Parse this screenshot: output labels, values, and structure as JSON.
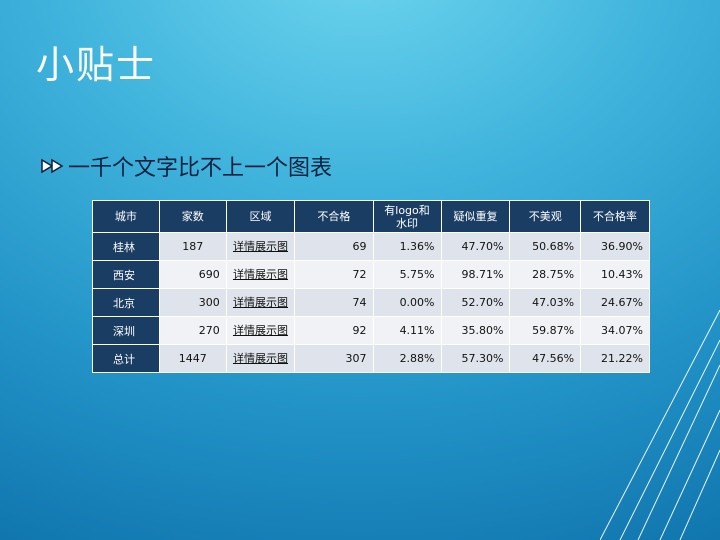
{
  "slide": {
    "title": "小贴士",
    "bullet": "一千个文字比不上一个图表"
  },
  "table": {
    "headers": [
      "城市",
      "家数",
      "区域",
      "不合格",
      "有logo和水印",
      "疑似重复",
      "不美观",
      "不合格率"
    ],
    "rows": [
      {
        "city": "桂林",
        "count": "187",
        "region": "详情展示图",
        "fail": "69",
        "logo": "1.36%",
        "dup": "47.70%",
        "ugly": "50.68%",
        "rate": "36.90%"
      },
      {
        "city": "西安",
        "count": "690",
        "region": "详情展示图",
        "fail": "72",
        "logo": "5.75%",
        "dup": "98.71%",
        "ugly": "28.75%",
        "rate": "10.43%"
      },
      {
        "city": "北京",
        "count": "300",
        "region": "详情展示图",
        "fail": "74",
        "logo": "0.00%",
        "dup": "52.70%",
        "ugly": "47.03%",
        "rate": "24.67%"
      },
      {
        "city": "深圳",
        "count": "270",
        "region": "详情展示图",
        "fail": "92",
        "logo": "4.11%",
        "dup": "35.80%",
        "ugly": "59.87%",
        "rate": "34.07%"
      },
      {
        "city": "总计",
        "count": "1447",
        "region": "详情展示图",
        "fail": "307",
        "logo": "2.88%",
        "dup": "57.30%",
        "ugly": "47.56%",
        "rate": "21.22%"
      }
    ]
  },
  "colors": {
    "header_bg": "#1a3d63",
    "row_odd": "#dfe4ec",
    "row_even": "#f0f2f6",
    "title_text": "#ffffff",
    "bullet_text": "#0a2240"
  }
}
